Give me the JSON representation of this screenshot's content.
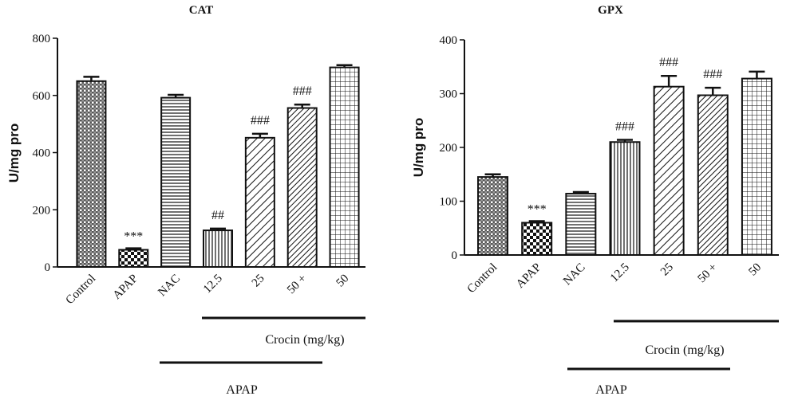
{
  "chart_data": [
    {
      "type": "bar",
      "title": "CAT",
      "ylabel": "U/mg pro",
      "ylim": [
        0,
        800
      ],
      "yticks": [
        "0",
        "200",
        "400",
        "600",
        "800"
      ],
      "categories": [
        "Control",
        "APAP",
        "NAC",
        "12.5",
        "25",
        "50 +",
        "50"
      ],
      "values": [
        650,
        60,
        592,
        128,
        452,
        556,
        698
      ],
      "errors": [
        15,
        5,
        10,
        6,
        14,
        12,
        8
      ],
      "annotations": [
        "",
        "***",
        "",
        "##",
        "###",
        "###",
        ""
      ],
      "patterns": [
        "crosshatch",
        "checker",
        "hlines",
        "vlines",
        "diag",
        "diag-dense",
        "grid"
      ],
      "groups": [
        {
          "label": "Crocin (mg/kg)"
        },
        {
          "label": "APAP"
        }
      ],
      "grid": false,
      "legend": "none"
    },
    {
      "type": "bar",
      "title": "GPX",
      "ylabel": "U/mg pro",
      "ylim": [
        0,
        400
      ],
      "yticks": [
        "0",
        "100",
        "200",
        "300",
        "400"
      ],
      "categories": [
        "Control",
        "APAP",
        "NAC",
        "12.5",
        "25",
        "50 +",
        "50"
      ],
      "values": [
        145,
        60,
        114,
        210,
        313,
        297,
        328
      ],
      "errors": [
        5,
        3,
        3,
        4,
        20,
        14,
        13
      ],
      "annotations": [
        "",
        "***",
        "",
        "###",
        "###",
        "###",
        ""
      ],
      "patterns": [
        "crosshatch",
        "checker",
        "hlines",
        "vlines",
        "diag",
        "diag-dense",
        "grid"
      ],
      "groups": [
        {
          "label": "Crocin (mg/kg)"
        },
        {
          "label": "APAP"
        }
      ],
      "grid": false,
      "legend": "none"
    }
  ]
}
